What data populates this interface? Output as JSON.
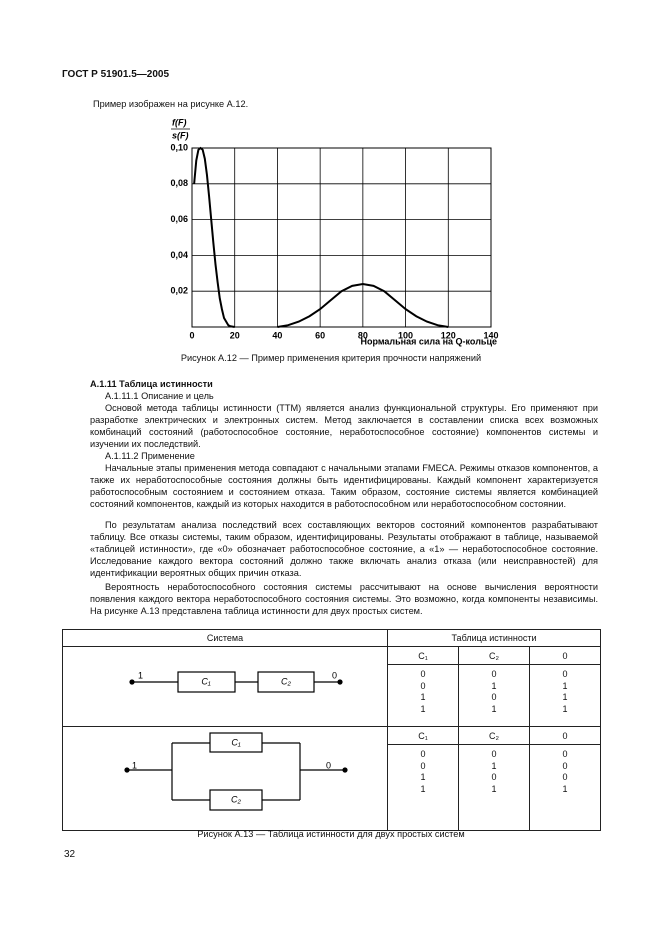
{
  "header": {
    "title": "ГОСТ Р 51901.5—2005"
  },
  "intro": "Пример изображен на рисунке А.12.",
  "chart_data": {
    "type": "line",
    "ylabel": [
      "f(F)",
      "s(F)"
    ],
    "xlabel": "Нормальная сила на Q-кольце",
    "xlim": [
      0,
      140
    ],
    "xticks": [
      0,
      20,
      40,
      60,
      80,
      100,
      120,
      140
    ],
    "ylim": [
      0,
      0.1
    ],
    "yticks": [
      {
        "value": 0.02,
        "label": "0,02"
      },
      {
        "value": 0.04,
        "label": "0,04"
      },
      {
        "value": 0.06,
        "label": "0,06"
      },
      {
        "value": 0.08,
        "label": "0,08"
      },
      {
        "value": 0.1,
        "label": "0,10"
      }
    ],
    "grid": true,
    "color": "#000000",
    "series": [
      {
        "x": [
          1,
          2,
          3,
          4,
          5,
          6,
          7,
          8,
          9,
          10,
          11,
          12,
          13,
          14,
          15,
          16,
          17,
          18,
          20
        ],
        "values": [
          0.08,
          0.093,
          0.099,
          0.1,
          0.099,
          0.094,
          0.085,
          0.073,
          0.06,
          0.047,
          0.035,
          0.025,
          0.016,
          0.01,
          0.005,
          0.003,
          0.001,
          0.0004,
          0
        ]
      },
      {
        "x": [
          40,
          45,
          50,
          55,
          60,
          65,
          70,
          75,
          80,
          85,
          90,
          95,
          100,
          105,
          110,
          115,
          120
        ],
        "values": [
          0,
          0.001,
          0.003,
          0.006,
          0.01,
          0.015,
          0.02,
          0.023,
          0.024,
          0.023,
          0.02,
          0.015,
          0.01,
          0.006,
          0.003,
          0.001,
          0
        ]
      }
    ]
  },
  "figure_a12": {
    "caption": "Рисунок А.12 — Пример применения критерия прочности напряжений"
  },
  "section": {
    "heading": "А.1.11 Таблица истинности",
    "sub1": "А.1.11.1 Описание и цель",
    "p1": "Основой метода таблицы истинности (ТТМ) является анализ функциональной структуры. Его применяют при разработке электрических и электронных систем. Метод заключается в составлении списка всех возможных комбинаций состояний (работоспособное состояние, неработоспособное состояние) компонентов системы и изучении их последствий.",
    "sub2": "А.1.11.2 Применение",
    "p2": "Начальные этапы применения метода совпадают с начальными этапами FMECA. Режимы отказов компонентов, а также их неработоспособные состояния должны быть идентифицированы. Каждый компонент характеризуется работоспособным состоянием и состоянием отказа. Таким образом, состояние системы является комбинацией состояний компонентов, каждый из которых находится в работоспособном или неработоспособном состоянии.",
    "p3": "По результатам анализа последствий всех составляющих векторов состояний компонентов разрабатывают таблицу. Все отказы системы, таким образом, идентифицированы. Результаты отображают в таблице, называемой «таблицей истинности», где «0» обозначает работоспособное состояние, а «1» — неработоспособное состояние. Исследование каждого вектора состояний должно также включать анализ отказа (или неисправностей) для идентификации вероятных общих причин отказа.",
    "p4": "Вероятность неработоспособного состояния системы рассчитывают на основе вычисления вероятности появления каждого вектора неработоспособного состояния системы. Это возможно, когда компоненты независимы. На рисунке А.13 представлена таблица истинности для двух простых систем."
  },
  "table": {
    "headers": [
      "Система",
      "Таблица истинности"
    ],
    "systems": [
      {
        "input": "1",
        "output": "0",
        "components": [
          "C₁",
          "C₂"
        ],
        "columns": [
          "C₁",
          "C₂",
          "0"
        ],
        "rows": [
          [
            0,
            0,
            0
          ],
          [
            0,
            1,
            1
          ],
          [
            1,
            0,
            1
          ],
          [
            1,
            1,
            1
          ]
        ]
      },
      {
        "input": "1",
        "output": "0",
        "components": [
          "C₁",
          "C₂"
        ],
        "columns": [
          "C₁",
          "C₂",
          "0"
        ],
        "rows": [
          [
            0,
            0,
            0
          ],
          [
            0,
            1,
            0
          ],
          [
            1,
            0,
            0
          ],
          [
            1,
            1,
            1
          ]
        ]
      }
    ]
  },
  "figure_a13": {
    "caption": "Рисунок А.13 — Таблица истинности для двух простых систем"
  },
  "footer": {
    "page": "32"
  }
}
